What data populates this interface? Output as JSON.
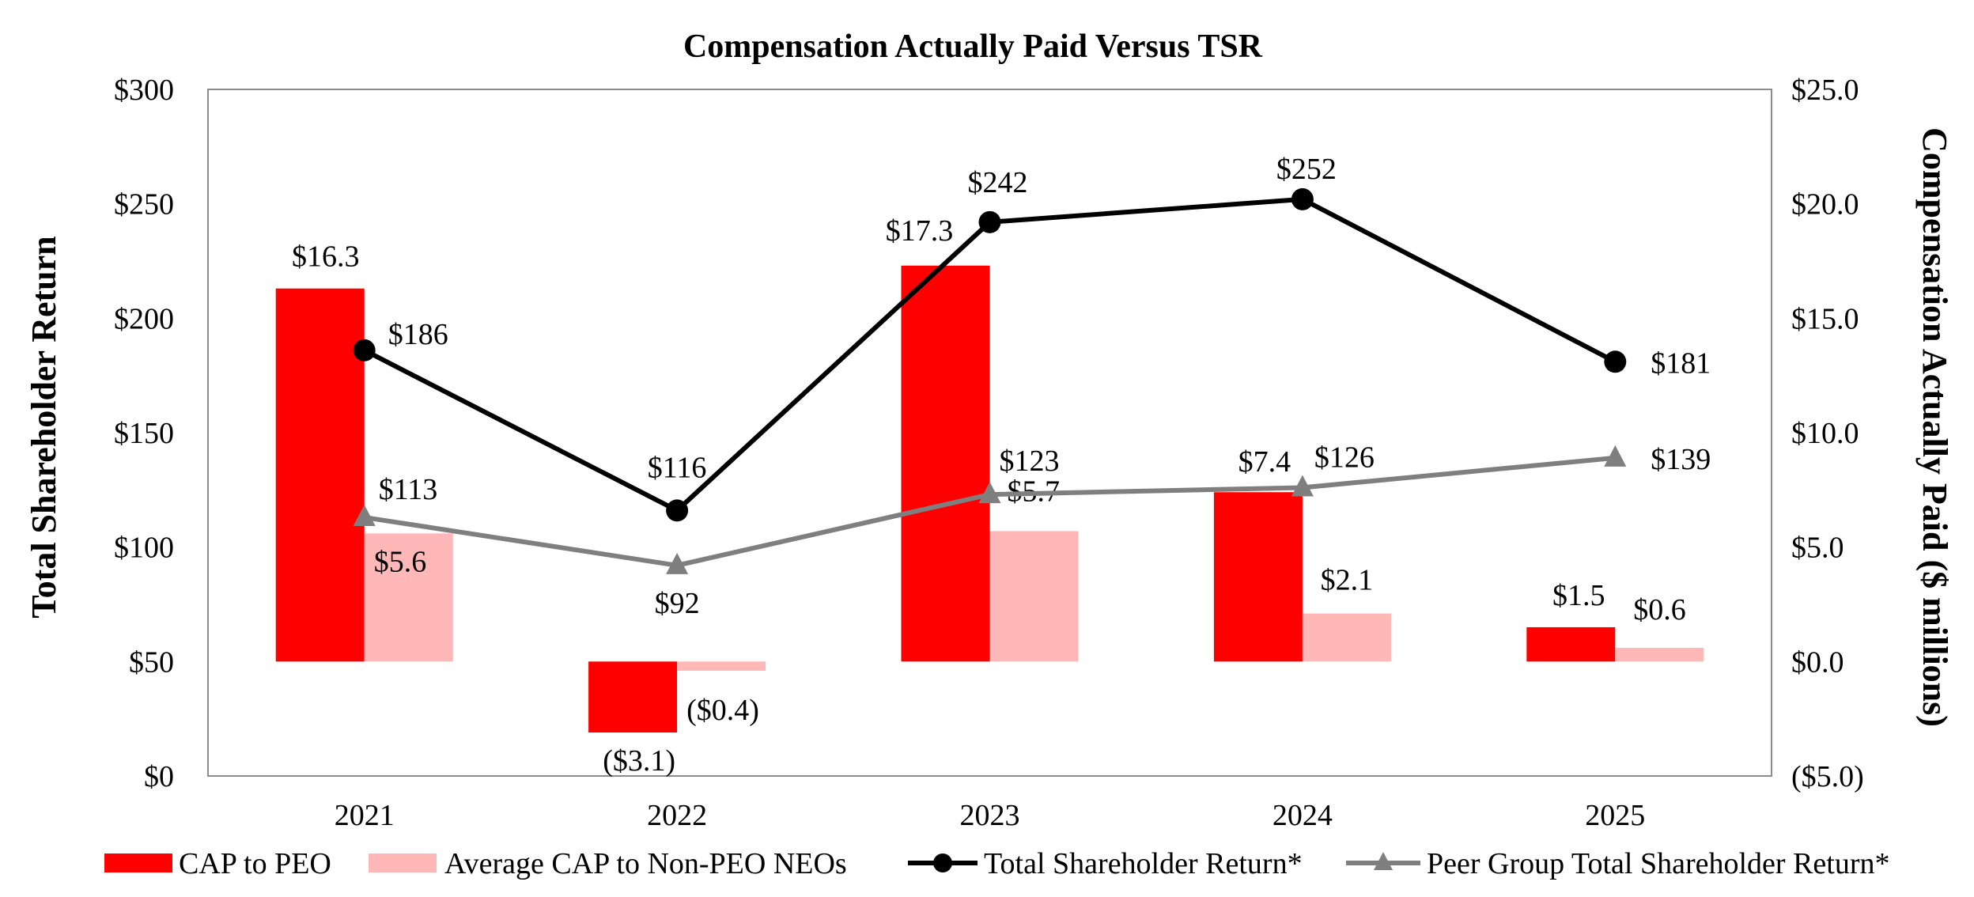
{
  "chart_data": {
    "type": "bar",
    "title": "Compensation Actually Paid Versus TSR",
    "categories": [
      "2021",
      "2022",
      "2023",
      "2024",
      "2025"
    ],
    "ylabel_left": "Total Shareholder Return",
    "ylabel_right": "Compensation Actually Paid ($ millions)",
    "ylim_left": [
      0,
      300
    ],
    "ylim_right": [
      -5,
      25
    ],
    "yticks_left": [
      "$0",
      "$50",
      "$100",
      "$150",
      "$200",
      "$250",
      "$300"
    ],
    "yticks_right": [
      "($5.0)",
      "$0.0",
      "$5.0",
      "$10.0",
      "$15.0",
      "$20.0",
      "$25.0"
    ],
    "grid": false,
    "legend_position": "bottom",
    "bar_series": [
      {
        "name": "CAP to PEO",
        "axis": "right",
        "color": "#ff0000",
        "values": [
          16.3,
          -3.1,
          17.3,
          7.4,
          1.5
        ],
        "labels": [
          "$16.3",
          "($3.1)",
          "$17.3",
          "$7.4",
          "$1.5"
        ]
      },
      {
        "name": "Average CAP to Non-PEO NEOs",
        "axis": "right",
        "color": "#ffb7b7",
        "values": [
          5.6,
          -0.4,
          5.7,
          2.1,
          0.6
        ],
        "labels": [
          "$5.6",
          "($0.4)",
          "$5.7",
          "$2.1",
          "$0.6"
        ]
      }
    ],
    "line_series": [
      {
        "name": "Total Shareholder Return*",
        "axis": "left",
        "color": "#000000",
        "marker": "circle",
        "values": [
          186,
          116,
          242,
          252,
          181
        ],
        "labels": [
          "$186",
          "$116",
          "$242",
          "$252",
          "$181"
        ]
      },
      {
        "name": "Peer Group Total Shareholder Return*",
        "axis": "left",
        "color": "#7f7f7f",
        "marker": "triangle",
        "values": [
          113,
          92,
          123,
          126,
          139
        ],
        "labels": [
          "$113",
          "$92",
          "$123",
          "$126",
          "$139"
        ]
      }
    ]
  }
}
